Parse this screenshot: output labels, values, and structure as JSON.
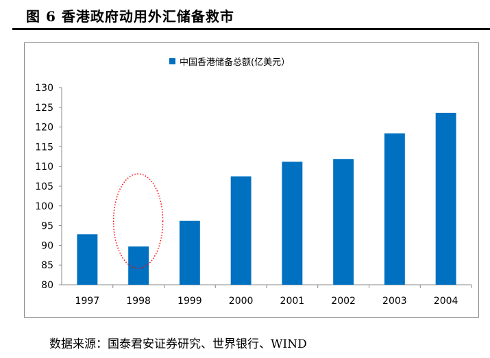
{
  "figure": {
    "title": "图 6 香港政府动用外汇储备救市",
    "source": "数据来源：国泰君安证券研究、世界银行、WIND"
  },
  "chart_data": {
    "type": "bar",
    "title": "",
    "legend": {
      "label": "中国香港储备总额(亿美元）",
      "placement": "top-center"
    },
    "categories": [
      "1997",
      "1998",
      "1999",
      "2000",
      "2001",
      "2002",
      "2003",
      "2004"
    ],
    "values": [
      92.8,
      89.7,
      96.2,
      107.5,
      111.2,
      111.9,
      118.4,
      123.6
    ],
    "xlabel": "",
    "ylabel": "",
    "ylim": [
      80,
      130
    ],
    "yticks": [
      80,
      85,
      90,
      95,
      100,
      105,
      110,
      115,
      120,
      125,
      130
    ],
    "grid": false,
    "bar_color": "#0070C0",
    "annotation": {
      "type": "dotted-ellipse",
      "target_category": "1998",
      "color": "#FF0000"
    }
  }
}
